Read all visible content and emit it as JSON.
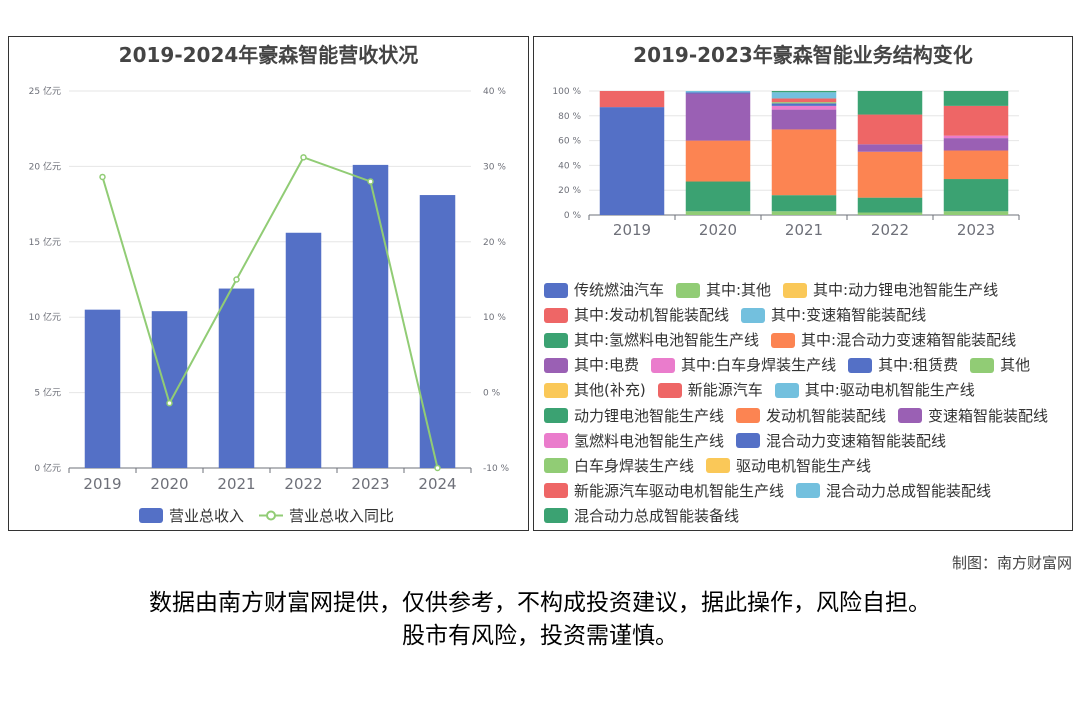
{
  "credit": "制图：南方财富网",
  "disclaimer_line1": "数据由南方财富网提供，仅供参考，不构成投资建议，据此操作，风险自担。",
  "disclaimer_line2": "股市有风险，投资需谨慎。",
  "watermark": "南方财富网",
  "chart_data": [
    {
      "type": "bar",
      "title": "2019-2024年豪森智能营收状况",
      "categories": [
        "2019",
        "2020",
        "2021",
        "2022",
        "2023",
        "2024"
      ],
      "y_left_ticks": [
        "0 亿元",
        "5 亿元",
        "10 亿元",
        "15 亿元",
        "20 亿元",
        "25 亿元"
      ],
      "y_right_ticks": [
        "-10 %",
        "0 %",
        "10 %",
        "20 %",
        "30 %",
        "40 %"
      ],
      "ylim": [
        0,
        25
      ],
      "y2lim": [
        -10,
        40
      ],
      "series": [
        {
          "name": "营业总收入",
          "kind": "bar",
          "color": "#5470c6",
          "values": [
            10.5,
            10.4,
            11.9,
            15.6,
            20.1,
            18.1
          ]
        },
        {
          "name": "营业总收入同比",
          "kind": "line",
          "color": "#91cc75",
          "values": [
            28.6,
            -1.4,
            15.0,
            31.2,
            28.0,
            -10.0
          ]
        }
      ],
      "legend_position": "bottom"
    },
    {
      "type": "bar",
      "stacked": true,
      "title": "2019-2023年豪森智能业务结构变化",
      "categories": [
        "2019",
        "2020",
        "2021",
        "2022",
        "2023"
      ],
      "y_ticks": [
        "0 %",
        "20 %",
        "40 %",
        "60 %",
        "80 %",
        "100 %"
      ],
      "ylim": [
        0,
        100
      ],
      "legend_position": "bottom",
      "series": [
        {
          "name": "传统燃油汽车",
          "color": "#5470c6",
          "values": [
            87,
            0,
            0,
            0,
            0
          ]
        },
        {
          "name": "其中:其他",
          "color": "#91cc75",
          "values": [
            0,
            3,
            3,
            2,
            3
          ]
        },
        {
          "name": "其中:动力锂电池智能生产线",
          "color": "#fac858",
          "values": [
            0,
            0,
            0,
            0,
            0
          ]
        },
        {
          "name": "其中:发动机智能装配线",
          "color": "#ee6666",
          "values": [
            0,
            0,
            0,
            0,
            0
          ]
        },
        {
          "name": "其中:变速箱智能装配线",
          "color": "#73c0de",
          "values": [
            0,
            0,
            0,
            0,
            0
          ]
        },
        {
          "name": "其中:氢燃料电池智能生产线",
          "color": "#3ba272",
          "values": [
            0,
            24,
            13,
            12,
            26
          ]
        },
        {
          "name": "其中:混合动力变速箱智能装配线",
          "color": "#fc8452",
          "values": [
            0,
            33,
            53,
            37,
            23
          ]
        },
        {
          "name": "其中:电费",
          "color": "#9a60b4",
          "values": [
            0,
            38,
            16,
            6,
            10
          ]
        },
        {
          "name": "其中:白车身焊装生产线",
          "color": "#ea7ccc",
          "values": [
            0,
            0,
            3,
            0,
            2
          ]
        },
        {
          "name": "其中:租赁费",
          "color": "#5470c6",
          "values": [
            0,
            1,
            2,
            0,
            0
          ]
        },
        {
          "name": "其他",
          "color": "#91cc75",
          "values": [
            0,
            0,
            1,
            0,
            0
          ]
        },
        {
          "name": "其他(补充)",
          "color": "#fac858",
          "values": [
            0,
            0,
            0,
            0,
            0
          ]
        },
        {
          "name": "新能源汽车",
          "color": "#ee6666",
          "values": [
            13,
            0,
            3,
            24,
            24
          ]
        },
        {
          "name": "其中:驱动电机智能生产线",
          "color": "#73c0de",
          "values": [
            0,
            1,
            5,
            0,
            0
          ]
        },
        {
          "name": "动力锂电池智能生产线",
          "color": "#3ba272",
          "values": [
            0,
            0,
            1,
            19,
            12
          ]
        },
        {
          "name": "发动机智能装配线",
          "color": "#fc8452",
          "values": [
            0,
            0,
            0,
            0,
            0
          ]
        },
        {
          "name": "变速箱智能装配线",
          "color": "#9a60b4",
          "values": [
            0,
            0,
            0,
            0,
            0
          ]
        },
        {
          "name": "氢燃料电池智能生产线",
          "color": "#ea7ccc",
          "values": [
            0,
            0,
            0,
            0,
            0
          ]
        },
        {
          "name": "混合动力变速箱智能装配线",
          "color": "#5470c6",
          "values": [
            0,
            0,
            0,
            0,
            0
          ]
        },
        {
          "name": "白车身焊装生产线",
          "color": "#91cc75",
          "values": [
            0,
            0,
            0,
            0,
            0
          ]
        },
        {
          "name": "驱动电机智能生产线",
          "color": "#fac858",
          "values": [
            0,
            0,
            0,
            0,
            0
          ]
        },
        {
          "name": "新能源汽车驱动电机智能生产线",
          "color": "#ee6666",
          "values": [
            0,
            0,
            0,
            0,
            0
          ]
        },
        {
          "name": "混合动力总成智能装配线",
          "color": "#73c0de",
          "values": [
            0,
            0,
            0,
            0,
            0
          ]
        },
        {
          "name": "混合动力总成智能装备线",
          "color": "#3ba272",
          "values": [
            0,
            0,
            0,
            0,
            0
          ]
        }
      ]
    }
  ]
}
